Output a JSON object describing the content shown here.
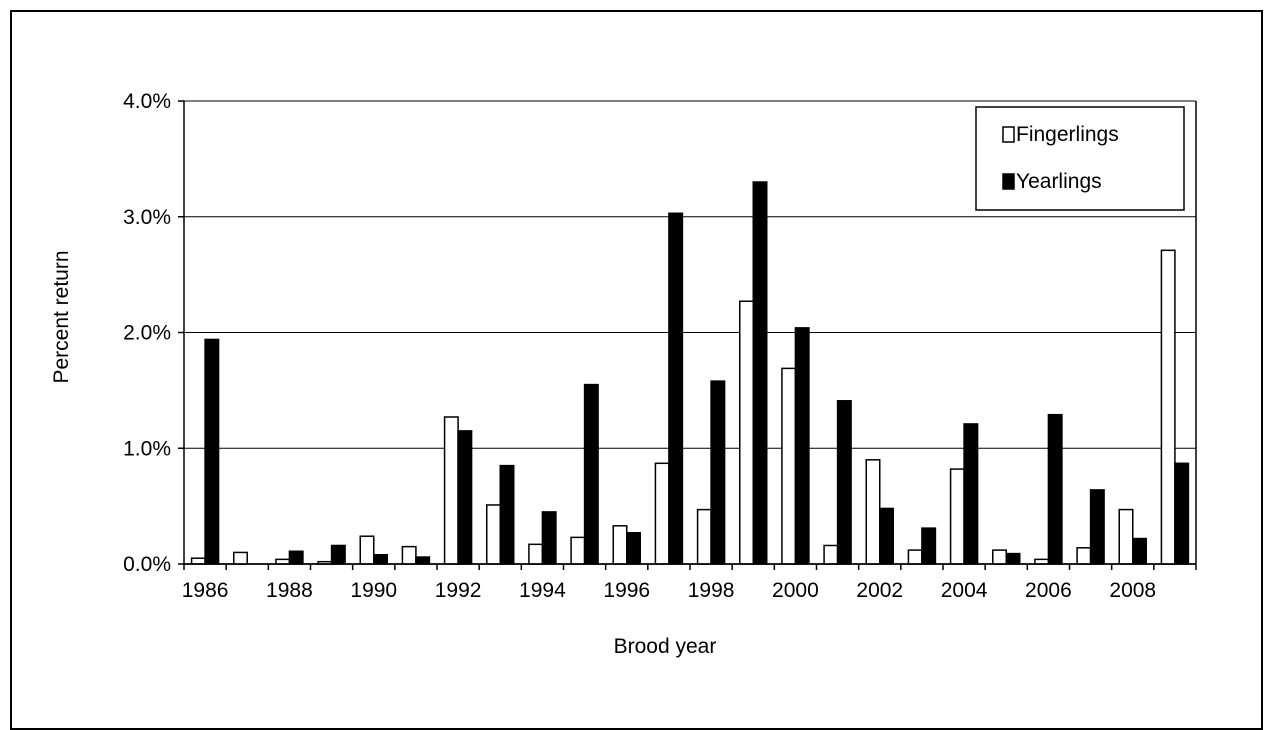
{
  "chart_data": {
    "type": "bar",
    "title": "",
    "xlabel": "Brood year",
    "ylabel": "Percent return",
    "ylim": [
      0,
      4.0
    ],
    "y_ticks": [
      "0.0%",
      "1.0%",
      "2.0%",
      "3.0%",
      "4.0%"
    ],
    "x_tick_labels": [
      "1986",
      "1988",
      "1990",
      "1992",
      "1994",
      "1996",
      "1998",
      "2000",
      "2002",
      "2004",
      "2006",
      "2008"
    ],
    "grid": true,
    "legend_position": "top-right",
    "categories": [
      "1986",
      "1987",
      "1988",
      "1989",
      "1990",
      "1991",
      "1992",
      "1993",
      "1994",
      "1995",
      "1996",
      "1997",
      "1998",
      "1999",
      "2000",
      "2001",
      "2002",
      "2003",
      "2004",
      "2005",
      "2006",
      "2007",
      "2008",
      "2009"
    ],
    "series": [
      {
        "name": "Fingerlings",
        "color": "#ffffff",
        "values": [
          0.05,
          0.1,
          0.04,
          0.02,
          0.24,
          0.15,
          1.27,
          0.51,
          0.17,
          0.23,
          0.33,
          0.87,
          0.47,
          2.27,
          1.69,
          0.16,
          0.9,
          0.12,
          0.82,
          0.12,
          0.04,
          0.14,
          0.47,
          2.71
        ]
      },
      {
        "name": "Yearlings",
        "color": "#000000",
        "values": [
          1.94,
          0.0,
          0.11,
          0.16,
          0.08,
          0.06,
          1.15,
          0.85,
          0.45,
          1.55,
          0.27,
          3.03,
          1.58,
          3.3,
          2.04,
          1.41,
          0.48,
          0.31,
          1.21,
          0.09,
          1.29,
          0.64,
          0.22,
          0.87
        ]
      }
    ]
  }
}
